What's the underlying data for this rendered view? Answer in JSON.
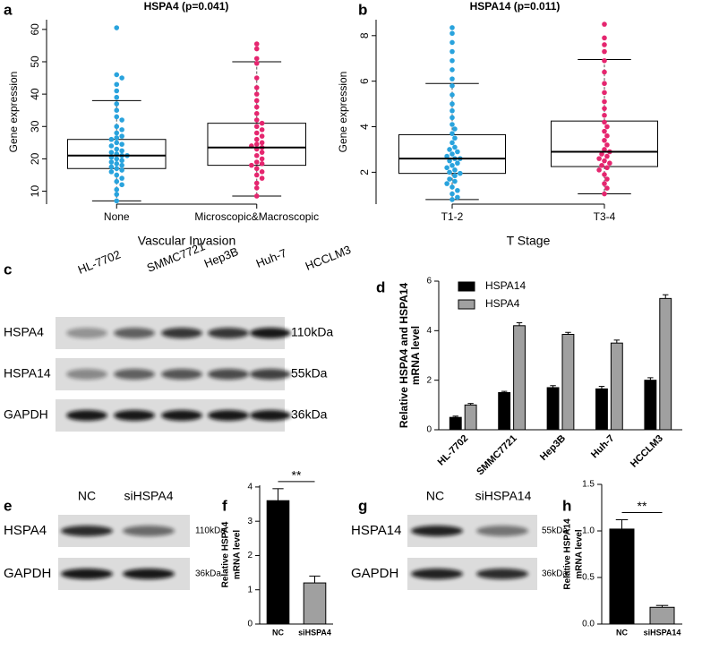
{
  "chart_data": [
    {
      "type": "box",
      "panel": "a",
      "title": "HSPA4 (p=0.041)",
      "xlabel": "Vascular Invasion",
      "ylabel": "Gene expression",
      "categories": [
        "None",
        "Microscopic&Macroscopic"
      ],
      "colors": [
        "#29a3dd",
        "#e5266f"
      ],
      "ylim": [
        6,
        63
      ],
      "yticks": [
        10,
        20,
        30,
        40,
        50,
        60
      ],
      "groups": [
        {
          "box": {
            "min": 7,
            "q1": 17,
            "median": 21,
            "q3": 26,
            "max": 38
          },
          "points": [
            60.5,
            46,
            45,
            43,
            41,
            39,
            37,
            35,
            33,
            32,
            30,
            29,
            28,
            27,
            26.5,
            26,
            25,
            24.5,
            24,
            23,
            22.5,
            22,
            21.5,
            21,
            21,
            20.5,
            20,
            19.5,
            19,
            18.5,
            18,
            17.5,
            17,
            16.5,
            16,
            15,
            14,
            13,
            12,
            10.5,
            9,
            7
          ]
        },
        {
          "box": {
            "min": 8.5,
            "q1": 18,
            "median": 23.5,
            "q3": 31,
            "max": 50
          },
          "points": [
            55.5,
            54,
            51,
            49.5,
            45,
            42,
            40,
            38,
            36,
            34,
            32,
            31,
            30,
            29,
            28,
            27,
            26,
            25,
            24.5,
            24,
            23.5,
            23,
            22,
            21,
            20,
            19,
            18.5,
            18,
            17,
            16,
            15,
            14,
            12.5,
            11,
            8.5
          ]
        }
      ]
    },
    {
      "type": "box",
      "panel": "b",
      "title": "HSPA14 (p=0.011)",
      "xlabel": "T Stage",
      "ylabel": "Gene expression",
      "categories": [
        "T1-2",
        "T3-4"
      ],
      "colors": [
        "#29a3dd",
        "#e5266f"
      ],
      "ylim": [
        0.6,
        8.7
      ],
      "yticks": [
        2,
        4,
        6,
        8
      ],
      "groups": [
        {
          "box": {
            "min": 0.8,
            "q1": 1.95,
            "median": 2.6,
            "q3": 3.65,
            "max": 5.9
          },
          "points": [
            8.35,
            8.1,
            7.7,
            7.3,
            6.9,
            6.5,
            6.1,
            5.8,
            5.4,
            5.0,
            4.7,
            4.4,
            4.1,
            3.9,
            3.7,
            3.5,
            3.3,
            3.1,
            3.0,
            2.9,
            2.8,
            2.7,
            2.6,
            2.6,
            2.5,
            2.4,
            2.3,
            2.2,
            2.1,
            2.0,
            1.95,
            1.85,
            1.7,
            1.6,
            1.5,
            1.35,
            1.2,
            1.05,
            0.9,
            0.8
          ]
        },
        {
          "box": {
            "min": 1.05,
            "q1": 2.25,
            "median": 2.9,
            "q3": 4.25,
            "max": 6.95
          },
          "points": [
            8.5,
            7.9,
            7.6,
            7.3,
            6.9,
            6.4,
            5.9,
            5.5,
            5.1,
            4.8,
            4.5,
            4.2,
            4.0,
            3.8,
            3.6,
            3.4,
            3.2,
            3.0,
            2.9,
            2.8,
            2.7,
            2.6,
            2.5,
            2.4,
            2.3,
            2.2,
            2.1,
            1.9,
            1.7,
            1.5,
            1.3,
            1.05
          ]
        }
      ]
    },
    {
      "type": "bar",
      "panel": "d",
      "ylabel": [
        "Relative HSPA4 and HSPA14",
        "mRNA level"
      ],
      "categories": [
        "HL-7702",
        "SMMC7721",
        "Hep3B",
        "Huh-7",
        "HCCLM3"
      ],
      "series": [
        {
          "name": "HSPA14",
          "color": "#000000",
          "values": [
            0.5,
            1.5,
            1.7,
            1.65,
            2.0
          ],
          "errors": [
            0.05,
            0.05,
            0.08,
            0.1,
            0.1
          ]
        },
        {
          "name": "HSPA4",
          "color": "#a0a0a0",
          "values": [
            1.0,
            4.2,
            3.85,
            3.5,
            5.3
          ],
          "errors": [
            0.06,
            0.12,
            0.08,
            0.12,
            0.15
          ]
        }
      ],
      "ylim": [
        0,
        6
      ],
      "yticks": [
        0,
        2,
        4,
        6
      ],
      "legend": "upper-left"
    },
    {
      "type": "bar",
      "panel": "f",
      "ylabel": [
        "Relative HSPA4",
        "mRNA level"
      ],
      "categories": [
        "NC",
        "siHSPA4"
      ],
      "values": [
        3.6,
        1.2
      ],
      "errors": [
        0.35,
        0.2
      ],
      "colors": [
        "#000000",
        "#a0a0a0"
      ],
      "ylim": [
        0,
        4.05
      ],
      "yticks": [
        0,
        1,
        2,
        3,
        4
      ],
      "annotation": "**"
    },
    {
      "type": "bar",
      "panel": "h",
      "ylabel": [
        "Relative HSPA14",
        "mRNA level"
      ],
      "categories": [
        "NC",
        "siHSPA14"
      ],
      "values": [
        1.02,
        0.18
      ],
      "errors": [
        0.1,
        0.02
      ],
      "colors": [
        "#000000",
        "#a0a0a0"
      ],
      "ylim": [
        0,
        1.5
      ],
      "yticks": [
        {
          "value": 0,
          "label": "0.0"
        },
        0.5,
        {
          "value": 1,
          "label": "1.0"
        },
        1.5
      ],
      "annotation": "**"
    }
  ],
  "blots": [
    {
      "panel": "c",
      "lanes": [
        "HL-7702",
        "SMMC7721",
        "Hep3B",
        "Huh-7",
        "HCCLM3"
      ],
      "rows": [
        {
          "name": "HSPA4",
          "size": "110kDa"
        },
        {
          "name": "HSPA14",
          "size": "55kDa"
        },
        {
          "name": "GAPDH",
          "size": "36kDa"
        }
      ]
    },
    {
      "panel": "e",
      "lanes": [
        "NC",
        "siHSPA4"
      ],
      "rows": [
        {
          "name": "HSPA4",
          "size": "110kDa"
        },
        {
          "name": "GAPDH",
          "size": "36kDa"
        }
      ]
    },
    {
      "panel": "g",
      "lanes": [
        "NC",
        "siHSPA14"
      ],
      "rows": [
        {
          "name": "HSPA14",
          "size": "55kDa"
        },
        {
          "name": "GAPDH",
          "size": "36kDa"
        }
      ]
    }
  ]
}
